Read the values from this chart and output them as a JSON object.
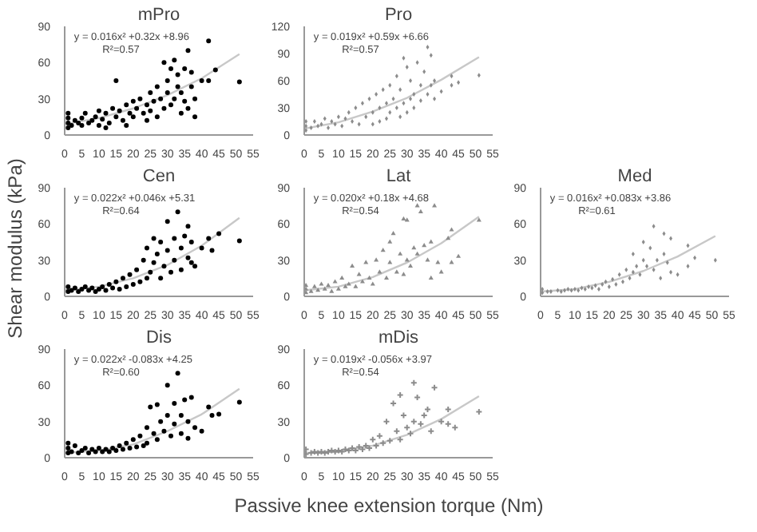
{
  "chart_data": [
    {
      "type": "scatter",
      "title": "mPro",
      "xlim": [
        0,
        55
      ],
      "xticks": [
        0,
        5,
        10,
        15,
        20,
        25,
        30,
        35,
        40,
        45,
        50,
        55
      ],
      "ylim": [
        0,
        90
      ],
      "yticks": [
        0,
        30,
        60,
        90
      ],
      "grid": false,
      "annotations": [
        "y = 0.016x² +0.32x +8.96",
        "R²=0.57"
      ],
      "series": [
        {
          "type": "line",
          "color": "#c8c8c8",
          "x": [
            0,
            10,
            20,
            30,
            40,
            51
          ],
          "values": [
            9,
            14,
            22,
            33,
            47,
            67
          ]
        },
        {
          "marker": "circle",
          "color": "#000000",
          "x": [
            1,
            1,
            1,
            1,
            2,
            3,
            4,
            5,
            5,
            6,
            7,
            8,
            9,
            10,
            10,
            11,
            12,
            13,
            14,
            15,
            15,
            16,
            17,
            18,
            19,
            20,
            20,
            21,
            22,
            23,
            24,
            25,
            25,
            26,
            27,
            27,
            28,
            29,
            29,
            30,
            30,
            31,
            31,
            32,
            32,
            33,
            33,
            34,
            34,
            35,
            35,
            36,
            37,
            37,
            38,
            38,
            40,
            42,
            42,
            44,
            51,
            36,
            24,
            18,
            12
          ],
          "values": [
            6,
            10,
            14,
            18,
            8,
            12,
            10,
            14,
            8,
            18,
            10,
            12,
            15,
            8,
            20,
            13,
            18,
            10,
            22,
            15,
            45,
            20,
            12,
            25,
            18,
            28,
            15,
            22,
            30,
            18,
            25,
            35,
            20,
            28,
            40,
            15,
            30,
            60,
            22,
            45,
            35,
            55,
            25,
            62,
            30,
            50,
            40,
            35,
            18,
            55,
            28,
            70,
            40,
            52,
            30,
            15,
            45,
            45,
            78,
            54,
            44,
            22,
            12,
            8,
            6
          ]
        }
      ]
    },
    {
      "type": "scatter",
      "title": "Pro",
      "xlim": [
        0,
        55
      ],
      "xticks": [
        0,
        5,
        10,
        15,
        20,
        25,
        30,
        35,
        40,
        45,
        50,
        55
      ],
      "ylim": [
        0,
        120
      ],
      "yticks": [
        0,
        30,
        60,
        90,
        120
      ],
      "grid": false,
      "annotations": [
        "y = 0.019x² +0.59x +6.66",
        "R²=0.57"
      ],
      "series": [
        {
          "type": "line",
          "color": "#c8c8c8",
          "x": [
            0,
            10,
            20,
            30,
            40,
            51
          ],
          "values": [
            7,
            14,
            26,
            41,
            61,
            86
          ]
        },
        {
          "marker": "diamond",
          "color": "#8c8c8c",
          "x": [
            0.5,
            0.5,
            0.5,
            2,
            3,
            4,
            5,
            6,
            7,
            8,
            9,
            10,
            11,
            12,
            13,
            14,
            15,
            16,
            17,
            18,
            19,
            20,
            20,
            21,
            22,
            22,
            23,
            24,
            24,
            25,
            25,
            26,
            27,
            27,
            28,
            28,
            29,
            29,
            30,
            30,
            31,
            31,
            32,
            32,
            33,
            34,
            34,
            35,
            36,
            36,
            37,
            37,
            38,
            38,
            40,
            43,
            43,
            45,
            51
          ],
          "values": [
            5,
            10,
            15,
            8,
            15,
            10,
            12,
            18,
            8,
            15,
            12,
            20,
            10,
            18,
            25,
            15,
            30,
            12,
            35,
            20,
            40,
            25,
            12,
            45,
            30,
            15,
            50,
            35,
            18,
            55,
            25,
            40,
            65,
            30,
            50,
            20,
            85,
            35,
            75,
            25,
            60,
            40,
            45,
            30,
            80,
            55,
            38,
            70,
            97,
            45,
            88,
            55,
            60,
            40,
            48,
            65,
            55,
            58,
            66
          ]
        }
      ]
    },
    {
      "type": "scatter",
      "title": "Cen",
      "ylabel": "Shear modulus (kPa)",
      "xlim": [
        0,
        55
      ],
      "xticks": [
        0,
        5,
        10,
        15,
        20,
        25,
        30,
        35,
        40,
        45,
        50,
        55
      ],
      "ylim": [
        0,
        90
      ],
      "yticks": [
        0,
        30,
        60,
        90
      ],
      "grid": false,
      "annotations": [
        "y = 0.022x² +0.046x +5.31",
        "R²=0.64"
      ],
      "series": [
        {
          "type": "line",
          "color": "#c8c8c8",
          "x": [
            0,
            10,
            20,
            30,
            40,
            51
          ],
          "values": [
            5,
            8,
            15,
            26,
            42,
            65
          ]
        },
        {
          "marker": "circle",
          "color": "#000000",
          "x": [
            1,
            1,
            2,
            3,
            4,
            5,
            6,
            7,
            8,
            9,
            10,
            11,
            12,
            13,
            14,
            15,
            16,
            17,
            18,
            19,
            20,
            21,
            22,
            23,
            24,
            24,
            25,
            26,
            26,
            27,
            28,
            28,
            29,
            30,
            30,
            31,
            32,
            32,
            33,
            34,
            34,
            35,
            36,
            36,
            37,
            37,
            38,
            40,
            42,
            43,
            45,
            51
          ],
          "values": [
            4,
            8,
            5,
            7,
            4,
            6,
            8,
            5,
            7,
            4,
            6,
            8,
            5,
            10,
            7,
            12,
            6,
            15,
            8,
            18,
            10,
            22,
            12,
            30,
            15,
            40,
            20,
            48,
            28,
            35,
            15,
            45,
            25,
            62,
            38,
            20,
            48,
            30,
            70,
            40,
            22,
            50,
            58,
            32,
            45,
            28,
            25,
            40,
            48,
            38,
            52,
            46
          ]
        }
      ]
    },
    {
      "type": "scatter",
      "title": "Lat",
      "xlim": [
        0,
        55
      ],
      "xticks": [
        0,
        5,
        10,
        15,
        20,
        25,
        30,
        35,
        40,
        45,
        50,
        55
      ],
      "ylim": [
        0,
        90
      ],
      "yticks": [
        0,
        30,
        60,
        90
      ],
      "grid": false,
      "annotations": [
        "y = 0.020x² +0.18x +4.68",
        "R²=0.54"
      ],
      "series": [
        {
          "type": "line",
          "color": "#c8c8c8",
          "x": [
            0,
            10,
            20,
            30,
            40,
            51
          ],
          "values": [
            5,
            8,
            16,
            28,
            44,
            66
          ]
        },
        {
          "marker": "triangle",
          "color": "#8c8c8c",
          "x": [
            0.5,
            0.5,
            0.5,
            2,
            3,
            4,
            5,
            6,
            7,
            8,
            9,
            10,
            11,
            12,
            13,
            14,
            15,
            16,
            17,
            18,
            19,
            20,
            21,
            22,
            23,
            24,
            25,
            25,
            26,
            27,
            28,
            29,
            29,
            30,
            30,
            31,
            32,
            33,
            33,
            34,
            35,
            36,
            37,
            37,
            38,
            39,
            40,
            42,
            43,
            43,
            45,
            51
          ],
          "values": [
            3,
            6,
            9,
            4,
            8,
            5,
            10,
            6,
            9,
            4,
            12,
            6,
            15,
            8,
            10,
            25,
            8,
            18,
            12,
            28,
            15,
            10,
            30,
            20,
            38,
            15,
            45,
            28,
            52,
            20,
            35,
            64,
            18,
            63,
            30,
            25,
            40,
            75,
            35,
            70,
            42,
            30,
            45,
            15,
            75,
            28,
            20,
            48,
            55,
            28,
            33,
            63
          ]
        }
      ]
    },
    {
      "type": "scatter",
      "title": "Med",
      "xlim": [
        0,
        55
      ],
      "xticks": [
        0,
        5,
        10,
        15,
        20,
        25,
        30,
        35,
        40,
        45,
        50,
        55
      ],
      "ylim": [
        0,
        90
      ],
      "yticks": [
        0,
        30,
        60,
        90
      ],
      "grid": false,
      "annotations": [
        "y = 0.016x² +0.083x +3.86",
        "R²=0.61"
      ],
      "series": [
        {
          "type": "line",
          "color": "#c8c8c8",
          "x": [
            0,
            10,
            20,
            30,
            40,
            51
          ],
          "values": [
            4,
            6,
            12,
            21,
            33,
            50
          ]
        },
        {
          "marker": "diamond",
          "color": "#8c8c8c",
          "x": [
            0.5,
            0.5,
            2,
            3,
            5,
            6,
            7,
            8,
            9,
            10,
            11,
            12,
            13,
            14,
            15,
            16,
            17,
            18,
            19,
            20,
            21,
            22,
            23,
            24,
            25,
            26,
            27,
            27,
            28,
            29,
            30,
            30,
            31,
            32,
            33,
            33,
            34,
            35,
            36,
            36,
            37,
            38,
            38,
            40,
            43,
            43,
            45,
            51
          ],
          "values": [
            3,
            6,
            4,
            4,
            5,
            4,
            5,
            6,
            5,
            6,
            5,
            7,
            6,
            8,
            7,
            9,
            6,
            10,
            12,
            8,
            14,
            10,
            18,
            12,
            22,
            15,
            35,
            20,
            25,
            18,
            30,
            45,
            25,
            40,
            58,
            22,
            30,
            15,
            52,
            35,
            28,
            48,
            20,
            18,
            42,
            25,
            32,
            30
          ]
        }
      ]
    },
    {
      "type": "scatter",
      "title": "Dis",
      "xlim": [
        0,
        55
      ],
      "xticks": [
        0,
        5,
        10,
        15,
        20,
        25,
        30,
        35,
        40,
        45,
        50,
        55
      ],
      "ylim": [
        0,
        90
      ],
      "yticks": [
        0,
        30,
        60,
        90
      ],
      "grid": false,
      "annotations": [
        "y = 0.022x² -0.083x +4.25",
        "R²=0.60"
      ],
      "series": [
        {
          "type": "line",
          "color": "#c8c8c8",
          "x": [
            0,
            10,
            20,
            30,
            40,
            51
          ],
          "values": [
            4,
            6,
            11,
            22,
            36,
            57
          ]
        },
        {
          "marker": "circle",
          "color": "#000000",
          "x": [
            1,
            1,
            1,
            2,
            3,
            4,
            5,
            6,
            7,
            8,
            9,
            10,
            11,
            12,
            13,
            14,
            15,
            16,
            17,
            18,
            19,
            20,
            21,
            22,
            23,
            24,
            24,
            25,
            26,
            27,
            27,
            28,
            29,
            30,
            30,
            31,
            32,
            32,
            33,
            34,
            34,
            35,
            36,
            36,
            37,
            38,
            40,
            42,
            43,
            45,
            51
          ],
          "values": [
            4,
            8,
            12,
            5,
            10,
            4,
            6,
            8,
            4,
            7,
            5,
            8,
            5,
            7,
            5,
            8,
            6,
            10,
            7,
            12,
            8,
            15,
            9,
            18,
            10,
            25,
            12,
            42,
            20,
            44,
            15,
            30,
            22,
            60,
            35,
            18,
            45,
            28,
            70,
            35,
            20,
            48,
            30,
            16,
            50,
            25,
            22,
            42,
            35,
            36,
            46
          ]
        }
      ]
    },
    {
      "type": "scatter",
      "title": "mDis",
      "xlabel": "Passive knee extension torque (Nm)",
      "xlim": [
        0,
        55
      ],
      "xticks": [
        0,
        5,
        10,
        15,
        20,
        25,
        30,
        35,
        40,
        45,
        50,
        55
      ],
      "ylim": [
        0,
        90
      ],
      "yticks": [
        0,
        30,
        60,
        90
      ],
      "grid": false,
      "annotations": [
        "y = 0.019x² -0.056x +3.97",
        "R²=0.54"
      ],
      "series": [
        {
          "type": "line",
          "color": "#c8c8c8",
          "x": [
            0,
            10,
            20,
            30,
            40,
            51
          ],
          "values": [
            4,
            5,
            10,
            19,
            32,
            51
          ]
        },
        {
          "marker": "cross",
          "color": "#8c8c8c",
          "x": [
            0.5,
            0.5,
            2,
            3,
            4,
            5,
            6,
            7,
            8,
            9,
            10,
            11,
            12,
            13,
            14,
            15,
            16,
            17,
            18,
            19,
            20,
            21,
            22,
            23,
            24,
            25,
            26,
            27,
            28,
            28,
            29,
            30,
            31,
            32,
            32,
            33,
            34,
            35,
            36,
            37,
            38,
            40,
            42,
            42,
            44,
            51
          ],
          "values": [
            3,
            7,
            4,
            5,
            4,
            5,
            4,
            5,
            6,
            5,
            6,
            5,
            7,
            6,
            8,
            6,
            9,
            7,
            10,
            8,
            15,
            10,
            18,
            12,
            30,
            14,
            45,
            22,
            52,
            15,
            35,
            25,
            20,
            62,
            30,
            50,
            28,
            35,
            40,
            22,
            58,
            30,
            40,
            28,
            25,
            38
          ]
        }
      ]
    }
  ]
}
